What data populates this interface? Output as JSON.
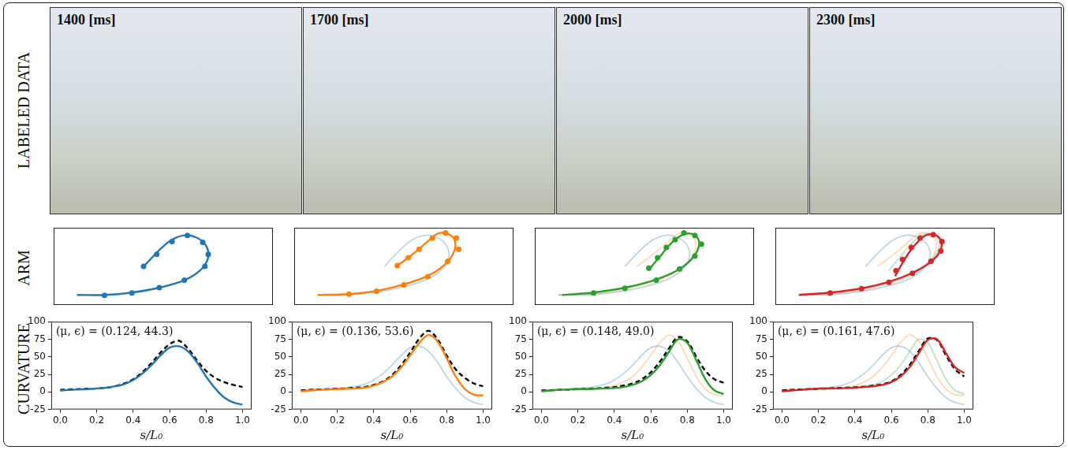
{
  "row_labels": [
    "LABELED DATA",
    "ARM",
    "CURVATURE"
  ],
  "photo_labels": [
    "1400 [ms]",
    "1700 [ms]",
    "2000 [ms]",
    "2300 [ms]"
  ],
  "chart_data": [
    {
      "type": "line",
      "tick_labels": false,
      "xlim": [
        0,
        1
      ],
      "ylim": [
        0.15,
        1.05
      ],
      "series": [
        {
          "type": "line",
          "color": "#1f77b4",
          "x": [
            0.107,
            0.232,
            0.357,
            0.482,
            0.596,
            0.668,
            0.704,
            0.696,
            0.654,
            0.596,
            0.536,
            0.482,
            0.439,
            0.411
          ],
          "values": [
            0.267,
            0.267,
            0.295,
            0.352,
            0.438,
            0.552,
            0.695,
            0.838,
            0.933,
            0.962,
            0.905,
            0.79,
            0.676,
            0.6
          ]
        },
        {
          "type": "scatter",
          "marker": "circle",
          "color": "#1f77b4",
          "x": [
            0.232,
            0.357,
            0.482,
            0.596,
            0.69,
            0.705,
            0.68,
            0.61,
            0.54,
            0.47,
            0.41
          ],
          "values": [
            0.262,
            0.29,
            0.352,
            0.44,
            0.6,
            0.74,
            0.88,
            0.96,
            0.89,
            0.74,
            0.6
          ]
        }
      ]
    },
    {
      "type": "line",
      "tick_labels": false,
      "xlim": [
        0,
        1
      ],
      "ylim": [
        0.15,
        1.05
      ],
      "series": [
        {
          "type": "line",
          "color": "#ff7f0e",
          "x": [
            0.107,
            0.25,
            0.375,
            0.5,
            0.607,
            0.686,
            0.729,
            0.732,
            0.7,
            0.654,
            0.607,
            0.554,
            0.507,
            0.464
          ],
          "values": [
            0.267,
            0.276,
            0.314,
            0.39,
            0.486,
            0.619,
            0.771,
            0.905,
            0.981,
            0.981,
            0.886,
            0.771,
            0.676,
            0.6
          ]
        },
        {
          "type": "scatter",
          "marker": "circle",
          "color": "#ff7f0e",
          "x": [
            0.25,
            0.375,
            0.5,
            0.61,
            0.7,
            0.75,
            0.74,
            0.69,
            0.63,
            0.57,
            0.52,
            0.47
          ],
          "values": [
            0.276,
            0.31,
            0.385,
            0.48,
            0.66,
            0.8,
            0.93,
            0.99,
            0.93,
            0.8,
            0.7,
            0.61
          ]
        }
      ]
    },
    {
      "type": "line",
      "tick_labels": false,
      "xlim": [
        0,
        1
      ],
      "ylim": [
        0.15,
        1.05
      ],
      "series": [
        {
          "type": "line",
          "color": "#2ca02c",
          "x": [
            0.125,
            0.268,
            0.411,
            0.554,
            0.661,
            0.725,
            0.75,
            0.732,
            0.689,
            0.646,
            0.607,
            0.571,
            0.539,
            0.518
          ],
          "values": [
            0.267,
            0.295,
            0.352,
            0.448,
            0.571,
            0.714,
            0.867,
            0.962,
            0.981,
            0.924,
            0.829,
            0.714,
            0.619,
            0.552
          ]
        },
        {
          "type": "scatter",
          "marker": "circle",
          "color": "#2ca02c",
          "x": [
            0.268,
            0.411,
            0.554,
            0.66,
            0.73,
            0.76,
            0.73,
            0.68,
            0.64,
            0.6,
            0.56,
            0.52
          ],
          "values": [
            0.29,
            0.345,
            0.44,
            0.57,
            0.72,
            0.86,
            0.96,
            0.99,
            0.91,
            0.82,
            0.7,
            0.58
          ]
        }
      ]
    },
    {
      "type": "line",
      "tick_labels": false,
      "xlim": [
        0,
        1
      ],
      "ylim": [
        0.15,
        1.05
      ],
      "series": [
        {
          "type": "line",
          "color": "#d62728",
          "x": [
            0.107,
            0.25,
            0.393,
            0.518,
            0.625,
            0.707,
            0.75,
            0.757,
            0.732,
            0.686,
            0.643,
            0.607,
            0.571,
            0.546
          ],
          "values": [
            0.267,
            0.295,
            0.343,
            0.419,
            0.524,
            0.648,
            0.771,
            0.886,
            0.962,
            0.962,
            0.867,
            0.752,
            0.6,
            0.486
          ]
        },
        {
          "type": "scatter",
          "marker": "circle",
          "color": "#d62728",
          "x": [
            0.25,
            0.393,
            0.518,
            0.625,
            0.71,
            0.755,
            0.76,
            0.72,
            0.66,
            0.62,
            0.58,
            0.55
          ],
          "values": [
            0.29,
            0.34,
            0.415,
            0.52,
            0.66,
            0.78,
            0.89,
            0.97,
            0.93,
            0.82,
            0.68,
            0.55
          ]
        }
      ]
    },
    {
      "type": "line",
      "annotation": "(μ, ϵ) = (0.124, 44.3)",
      "xlabel": "s/L₀",
      "x": [
        0,
        0.05,
        0.1,
        0.15,
        0.2,
        0.25,
        0.3,
        0.35,
        0.4,
        0.45,
        0.5,
        0.55,
        0.6,
        0.65,
        0.7,
        0.75,
        0.8,
        0.85,
        0.9,
        0.95,
        1
      ],
      "xlim": [
        -0.05,
        1.05
      ],
      "xticks": [
        {
          "value": 0,
          "label": "0.0"
        },
        0.2,
        0.4,
        0.6,
        0.8,
        {
          "value": 1,
          "label": "1.0"
        }
      ],
      "ylim": [
        -25,
        100
      ],
      "yticks": [
        -25,
        0,
        25,
        50,
        75,
        100
      ],
      "series": [
        {
          "type": "line",
          "color": "#1f77b4",
          "values": [
            2,
            3,
            3.5,
            4,
            5,
            6,
            8,
            11,
            17,
            26,
            38,
            52,
            63,
            65,
            58,
            42,
            22,
            5,
            -8,
            -15,
            -18
          ]
        },
        {
          "type": "line",
          "color": "#000000",
          "line_style": "dashed",
          "values": [
            3,
            3.5,
            4,
            4.5,
            5,
            6,
            8,
            12,
            18,
            28,
            41,
            56,
            68,
            73,
            62,
            45,
            30,
            20,
            14,
            10,
            7
          ]
        }
      ]
    },
    {
      "type": "line",
      "annotation": "(μ, ϵ) = (0.136, 53.6)",
      "xlabel": "s/L₀",
      "x": [
        0,
        0.05,
        0.1,
        0.15,
        0.2,
        0.25,
        0.3,
        0.35,
        0.4,
        0.45,
        0.5,
        0.55,
        0.6,
        0.65,
        0.7,
        0.75,
        0.8,
        0.85,
        0.9,
        0.95,
        1
      ],
      "xlim": [
        -0.05,
        1.05
      ],
      "xticks": [
        {
          "value": 0,
          "label": "0.0"
        },
        0.2,
        0.4,
        0.6,
        0.8,
        {
          "value": 1,
          "label": "1.0"
        }
      ],
      "ylim": [
        -25,
        100
      ],
      "yticks": [
        -25,
        0,
        25,
        50,
        75,
        100
      ],
      "series": [
        {
          "type": "line",
          "color": "#ff7f0e",
          "values": [
            1,
            2,
            3,
            3.5,
            4,
            4.5,
            5,
            6,
            9,
            14,
            22,
            35,
            52,
            70,
            81,
            72,
            48,
            22,
            4,
            -4,
            -5
          ]
        },
        {
          "type": "line",
          "color": "#000000",
          "line_style": "dashed",
          "values": [
            2,
            3,
            3.5,
            4,
            4.5,
            5,
            6,
            7,
            10,
            15,
            24,
            38,
            56,
            76,
            87,
            75,
            52,
            32,
            20,
            12,
            8
          ]
        }
      ]
    },
    {
      "type": "line",
      "annotation": "(μ, ϵ) = (0.148, 49.0)",
      "xlabel": "s/L₀",
      "x": [
        0,
        0.05,
        0.1,
        0.15,
        0.2,
        0.25,
        0.3,
        0.35,
        0.4,
        0.45,
        0.5,
        0.55,
        0.6,
        0.65,
        0.7,
        0.75,
        0.8,
        0.85,
        0.9,
        0.95,
        1
      ],
      "xlim": [
        -0.05,
        1.05
      ],
      "xticks": [
        {
          "value": 0,
          "label": "0.0"
        },
        0.2,
        0.4,
        0.6,
        0.8,
        {
          "value": 1,
          "label": "1.0"
        }
      ],
      "ylim": [
        -25,
        100
      ],
      "yticks": [
        -25,
        0,
        25,
        50,
        75,
        100
      ],
      "series": [
        {
          "type": "line",
          "color": "#2ca02c",
          "values": [
            1,
            2,
            3,
            3.5,
            4,
            4,
            4.5,
            5,
            5.5,
            7,
            10,
            15,
            24,
            38,
            57,
            75,
            70,
            45,
            18,
            2,
            -3
          ]
        },
        {
          "type": "line",
          "color": "#000000",
          "line_style": "dashed",
          "values": [
            2,
            2.5,
            3,
            3.5,
            4,
            4.5,
            5,
            6,
            7,
            9,
            12,
            18,
            28,
            43,
            62,
            78,
            72,
            50,
            30,
            18,
            13
          ]
        }
      ]
    },
    {
      "type": "line",
      "annotation": "(μ, ϵ) = (0.161, 47.6)",
      "xlabel": "s/L₀",
      "x": [
        0,
        0.05,
        0.1,
        0.15,
        0.2,
        0.25,
        0.3,
        0.35,
        0.4,
        0.45,
        0.5,
        0.55,
        0.6,
        0.65,
        0.7,
        0.75,
        0.8,
        0.85,
        0.9,
        0.95,
        1
      ],
      "xlim": [
        -0.05,
        1.05
      ],
      "xticks": [
        {
          "value": 0,
          "label": "0.0"
        },
        0.2,
        0.4,
        0.6,
        0.8,
        {
          "value": 1,
          "label": "1.0"
        }
      ],
      "ylim": [
        -25,
        100
      ],
      "yticks": [
        -25,
        0,
        25,
        50,
        75,
        100
      ],
      "series": [
        {
          "type": "line",
          "color": "#d62728",
          "values": [
            1,
            2,
            3,
            4,
            5,
            5,
            5,
            5.5,
            6,
            7,
            8,
            10,
            14,
            22,
            35,
            55,
            74,
            75,
            55,
            35,
            27
          ]
        },
        {
          "type": "line",
          "color": "#000000",
          "line_style": "dashed",
          "values": [
            2,
            3,
            3.5,
            4,
            4.5,
            5,
            5.5,
            6,
            6.5,
            7.5,
            9,
            11,
            15,
            24,
            38,
            58,
            76,
            74,
            52,
            32,
            22
          ]
        }
      ]
    }
  ]
}
